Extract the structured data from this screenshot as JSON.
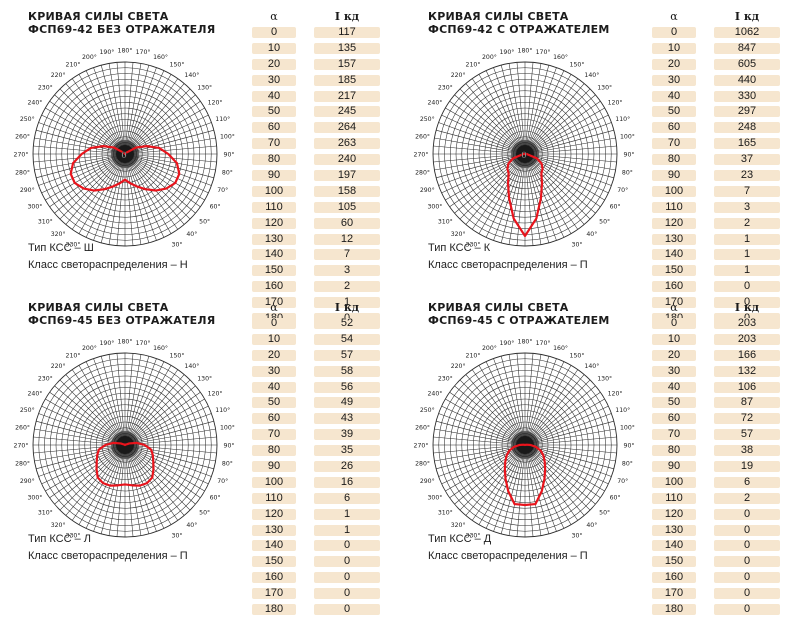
{
  "chart_data": [
    {
      "type": "polar-line",
      "title_lines": [
        "КРИВАЯ СИЛЫ СВЕТА",
        "ФСП69-42 БЕЗ ОТРАЖАТЕЛЯ"
      ],
      "type_label": "Тип КСС – Ш",
      "class_label": "Класс светораспределения – Н",
      "header_alpha": "α",
      "header_i": "I кд",
      "angles": [
        "0",
        "10",
        "20",
        "30",
        "40",
        "50",
        "60",
        "70",
        "80",
        "90",
        "100",
        "110",
        "120",
        "130",
        "140",
        "150",
        "160",
        "170",
        "180"
      ],
      "values": [
        117,
        135,
        157,
        185,
        217,
        245,
        264,
        263,
        240,
        197,
        158,
        105,
        60,
        12,
        7,
        3,
        2,
        1,
        0
      ],
      "center_label": "0",
      "angle_labels": [
        "0°",
        "10°",
        "20°",
        "30°",
        "40°",
        "50°",
        "60°",
        "70°",
        "80°",
        "90°",
        "100°",
        "110°",
        "120°",
        "130°",
        "140°",
        "150°",
        "160°",
        "170°",
        "180°",
        "190°",
        "200°",
        "210°",
        "220°",
        "230°",
        "240°",
        "250°",
        "260°",
        "270°",
        "280°",
        "290°",
        "300°",
        "310°",
        "320°",
        "330°",
        "340°",
        "350°"
      ],
      "line_color": "#e8141c"
    },
    {
      "type": "polar-line",
      "title_lines": [
        "КРИВАЯ СИЛЫ СВЕТА",
        "ФСП69-42 С ОТРАЖАТЕЛЕМ"
      ],
      "type_label": "Тип КСС – К",
      "class_label": "Класс светораспределения – П",
      "header_alpha": "α",
      "header_i": "I кд",
      "angles": [
        "0",
        "10",
        "20",
        "30",
        "40",
        "50",
        "60",
        "70",
        "80",
        "90",
        "100",
        "110",
        "120",
        "130",
        "140",
        "150",
        "160",
        "170",
        "180"
      ],
      "values": [
        1062,
        847,
        605,
        440,
        330,
        297,
        248,
        165,
        37,
        23,
        7,
        3,
        2,
        1,
        1,
        1,
        0,
        0,
        0
      ],
      "center_label": "0",
      "angle_labels": [
        "0°",
        "10°",
        "20°",
        "30°",
        "40°",
        "50°",
        "60°",
        "70°",
        "80°",
        "90°",
        "100°",
        "110°",
        "120°",
        "130°",
        "140°",
        "150°",
        "160°",
        "170°",
        "180°",
        "190°",
        "200°",
        "210°",
        "220°",
        "230°",
        "240°",
        "250°",
        "260°",
        "270°",
        "280°",
        "290°",
        "300°",
        "310°",
        "320°",
        "330°",
        "340°",
        "350°"
      ],
      "line_color": "#e8141c"
    },
    {
      "type": "polar-line",
      "title_lines": [
        "КРИВАЯ СИЛЫ СВЕТА",
        "ФСП69-45 БЕЗ ОТРАЖАТЕЛЯ"
      ],
      "type_label": "Тип КСС – Л",
      "class_label": "Класс светораспределения – П",
      "header_alpha": "α",
      "header_i": "I кд",
      "angles": [
        "0",
        "10",
        "20",
        "30",
        "40",
        "50",
        "60",
        "70",
        "80",
        "90",
        "100",
        "110",
        "120",
        "130",
        "140",
        "150",
        "160",
        "170",
        "180"
      ],
      "values": [
        52,
        54,
        57,
        58,
        56,
        49,
        43,
        39,
        35,
        26,
        16,
        6,
        1,
        1,
        0,
        0,
        0,
        0,
        0
      ],
      "center_label": "",
      "angle_labels": [
        "0°",
        "10°",
        "20°",
        "30°",
        "40°",
        "50°",
        "60°",
        "70°",
        "80°",
        "90°",
        "100°",
        "110°",
        "120°",
        "130°",
        "140°",
        "150°",
        "160°",
        "170°",
        "180°",
        "190°",
        "200°",
        "210°",
        "220°",
        "230°",
        "240°",
        "250°",
        "260°",
        "270°",
        "280°",
        "290°",
        "300°",
        "310°",
        "320°",
        "330°",
        "340°",
        "350°"
      ],
      "line_color": "#e8141c"
    },
    {
      "type": "polar-line",
      "title_lines": [
        "КРИВАЯ СИЛЫ СВЕТА",
        "ФСП69-45 С ОТРАЖАТЕЛЕМ"
      ],
      "type_label": "Тип КСС – Д",
      "class_label": "Класс светораспределения – П",
      "header_alpha": "α",
      "header_i": "I кд",
      "angles": [
        "0",
        "10",
        "20",
        "30",
        "40",
        "50",
        "60",
        "70",
        "80",
        "90",
        "100",
        "110",
        "120",
        "130",
        "140",
        "150",
        "160",
        "170",
        "180"
      ],
      "values": [
        203,
        203,
        166,
        132,
        106,
        87,
        72,
        57,
        38,
        19,
        6,
        2,
        0,
        0,
        0,
        0,
        0,
        0,
        0
      ],
      "center_label": "",
      "angle_labels": [
        "0°",
        "10°",
        "20°",
        "30°",
        "40°",
        "50°",
        "60°",
        "70°",
        "80°",
        "90°",
        "100°",
        "110°",
        "120°",
        "130°",
        "140°",
        "150°",
        "160°",
        "170°",
        "180°",
        "190°",
        "200°",
        "210°",
        "220°",
        "230°",
        "240°",
        "250°",
        "260°",
        "270°",
        "280°",
        "290°",
        "300°",
        "310°",
        "320°",
        "330°",
        "340°",
        "350°"
      ],
      "line_color": "#e8141c"
    }
  ]
}
